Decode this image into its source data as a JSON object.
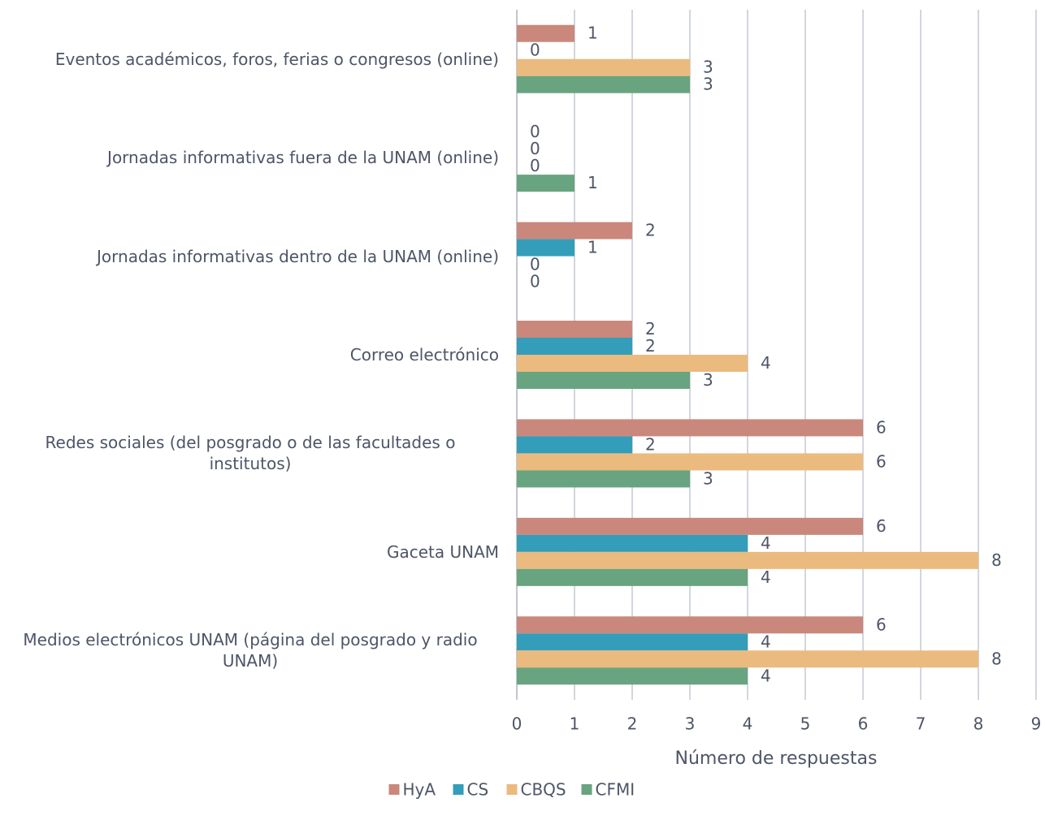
{
  "chart_data": {
    "type": "bar",
    "orientation": "horizontal",
    "categories": [
      "Eventos académicos, foros, ferias o congresos (online)",
      "Jornadas informativas fuera de la UNAM (online)",
      "Jornadas informativas dentro de la UNAM (online)",
      "Correo electrónico",
      "Redes sociales (del posgrado o de las facultades o institutos)",
      "Gaceta UNAM",
      "Medios electrónicos UNAM (página del posgrado y radio UNAM)"
    ],
    "series": [
      {
        "name": "HyA",
        "color": "#c9887b",
        "values": [
          1,
          0,
          2,
          2,
          6,
          6,
          6
        ]
      },
      {
        "name": "CS",
        "color": "#349db9",
        "values": [
          0,
          0,
          1,
          2,
          2,
          4,
          4
        ]
      },
      {
        "name": "CBQS",
        "color": "#ebba7e",
        "values": [
          3,
          0,
          0,
          4,
          6,
          8,
          8
        ]
      },
      {
        "name": "CFMI",
        "color": "#68a47f",
        "values": [
          3,
          1,
          0,
          3,
          3,
          4,
          4
        ]
      }
    ],
    "xlabel": "Número de respuestas",
    "xlim": [
      0,
      9
    ],
    "xticks": [
      0,
      1,
      2,
      3,
      4,
      5,
      6,
      7,
      8,
      9
    ],
    "grid": true,
    "legend": "bottom"
  }
}
